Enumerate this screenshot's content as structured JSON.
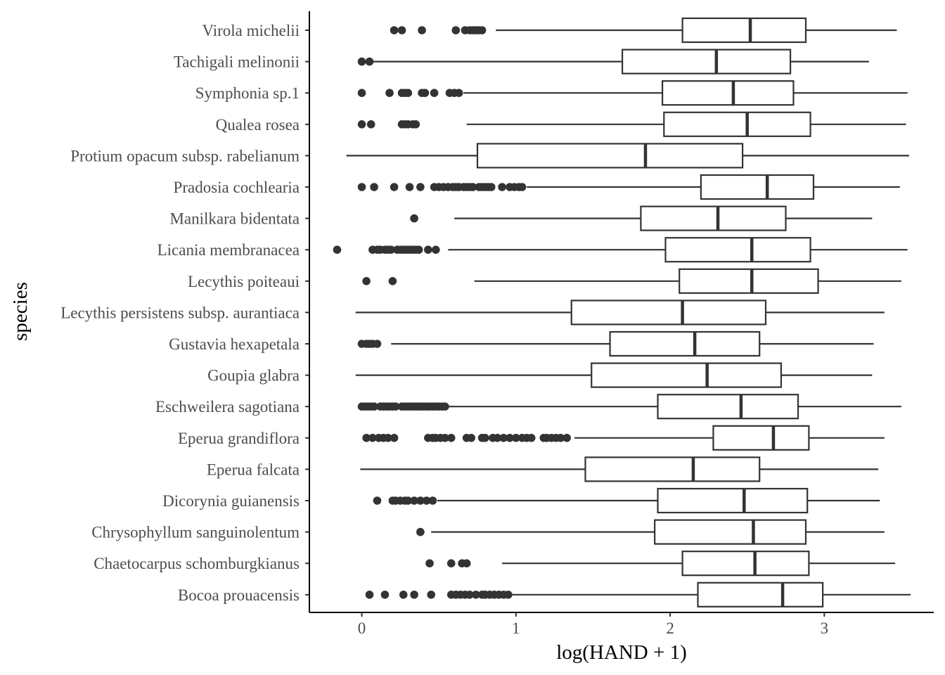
{
  "chart_data": {
    "type": "boxplot",
    "orientation": "horizontal",
    "xlabel": "log(HAND + 1)",
    "ylabel": "species",
    "xlim": [
      -0.34,
      3.71
    ],
    "x_ticks": [
      0,
      1,
      2,
      3
    ],
    "grid": false,
    "legend": "none",
    "colors": {
      "box_stroke": "#333333",
      "outlier": "#333333",
      "axis": "#000000",
      "tick_text": "#4d4d4d"
    },
    "categories": [
      "Virola michelii",
      "Tachigali melinonii",
      "Symphonia sp.1",
      "Qualea rosea",
      "Protium opacum subsp. rabelianum",
      "Pradosia cochlearia",
      "Manilkara bidentata",
      "Licania membranacea",
      "Lecythis poiteaui",
      "Lecythis persistens subsp. aurantiaca",
      "Gustavia hexapetala",
      "Goupia glabra",
      "Eschweilera sagotiana",
      "Eperua grandiflora",
      "Eperua falcata",
      "Dicorynia guianensis",
      "Chrysophyllum sanguinolentum",
      "Chaetocarpus schomburgkianus",
      "Bocoa prouacensis"
    ],
    "boxes": [
      {
        "min": 0.87,
        "q1": 2.08,
        "median": 2.52,
        "q3": 2.88,
        "max": 3.47,
        "outliers": [
          0.21,
          0.26,
          0.39,
          0.61,
          0.67,
          0.7,
          0.72,
          0.74,
          0.76,
          0.78
        ]
      },
      {
        "min": 0.07,
        "q1": 1.69,
        "median": 2.3,
        "q3": 2.78,
        "max": 3.29,
        "outliers": [
          0.0,
          0.05
        ]
      },
      {
        "min": 0.66,
        "q1": 1.95,
        "median": 2.41,
        "q3": 2.8,
        "max": 3.54,
        "outliers": [
          0.0,
          0.18,
          0.26,
          0.28,
          0.3,
          0.39,
          0.41,
          0.47,
          0.57,
          0.6,
          0.63
        ]
      },
      {
        "min": 0.68,
        "q1": 1.96,
        "median": 2.5,
        "q3": 2.91,
        "max": 3.53,
        "outliers": [
          0.0,
          0.06,
          0.26,
          0.28,
          0.3,
          0.33,
          0.35
        ]
      },
      {
        "min": -0.1,
        "q1": 0.75,
        "median": 1.84,
        "q3": 2.47,
        "max": 3.55,
        "outliers": []
      },
      {
        "min": 1.07,
        "q1": 2.2,
        "median": 2.63,
        "q3": 2.93,
        "max": 3.49,
        "outliers": [
          0.0,
          0.08,
          0.21,
          0.31,
          0.38,
          0.47,
          0.5,
          0.53,
          0.56,
          0.59,
          0.61,
          0.63,
          0.66,
          0.68,
          0.7,
          0.72,
          0.76,
          0.78,
          0.8,
          0.82,
          0.84,
          0.91,
          0.96,
          0.99,
          1.02,
          1.04
        ]
      },
      {
        "min": 0.6,
        "q1": 1.81,
        "median": 2.31,
        "q3": 2.75,
        "max": 3.31,
        "outliers": [
          0.34
        ]
      },
      {
        "min": 0.56,
        "q1": 1.97,
        "median": 2.53,
        "q3": 2.91,
        "max": 3.54,
        "outliers": [
          -0.16,
          0.07,
          0.1,
          0.12,
          0.15,
          0.17,
          0.19,
          0.23,
          0.25,
          0.27,
          0.29,
          0.31,
          0.33,
          0.35,
          0.37,
          0.43,
          0.48
        ]
      },
      {
        "min": 0.73,
        "q1": 2.06,
        "median": 2.53,
        "q3": 2.96,
        "max": 3.5,
        "outliers": [
          0.03,
          0.2
        ]
      },
      {
        "min": -0.04,
        "q1": 1.36,
        "median": 2.08,
        "q3": 2.62,
        "max": 3.39,
        "outliers": []
      },
      {
        "min": 0.19,
        "q1": 1.61,
        "median": 2.16,
        "q3": 2.58,
        "max": 3.32,
        "outliers": [
          0.0,
          0.03,
          0.05,
          0.07,
          0.1
        ]
      },
      {
        "min": -0.04,
        "q1": 1.49,
        "median": 2.24,
        "q3": 2.72,
        "max": 3.31,
        "outliers": []
      },
      {
        "min": 0.55,
        "q1": 1.92,
        "median": 2.46,
        "q3": 2.83,
        "max": 3.5,
        "outliers": [
          0.0,
          0.02,
          0.04,
          0.06,
          0.08,
          0.12,
          0.14,
          0.16,
          0.18,
          0.2,
          0.22,
          0.26,
          0.28,
          0.3,
          0.32,
          0.34,
          0.36,
          0.38,
          0.4,
          0.42,
          0.44,
          0.46,
          0.48,
          0.5,
          0.52,
          0.54
        ]
      },
      {
        "min": 1.38,
        "q1": 2.28,
        "median": 2.67,
        "q3": 2.9,
        "max": 3.39,
        "outliers": [
          0.03,
          0.07,
          0.11,
          0.14,
          0.17,
          0.21,
          0.43,
          0.46,
          0.48,
          0.51,
          0.54,
          0.58,
          0.68,
          0.71,
          0.78,
          0.8,
          0.85,
          0.88,
          0.92,
          0.96,
          1.0,
          1.04,
          1.07,
          1.1,
          1.18,
          1.2,
          1.23,
          1.26,
          1.29,
          1.33
        ]
      },
      {
        "min": -0.01,
        "q1": 1.45,
        "median": 2.15,
        "q3": 2.58,
        "max": 3.35,
        "outliers": []
      },
      {
        "min": 0.49,
        "q1": 1.92,
        "median": 2.48,
        "q3": 2.89,
        "max": 3.36,
        "outliers": [
          0.1,
          0.2,
          0.22,
          0.25,
          0.28,
          0.3,
          0.34,
          0.38,
          0.42,
          0.46
        ]
      },
      {
        "min": 0.45,
        "q1": 1.9,
        "median": 2.54,
        "q3": 2.88,
        "max": 3.39,
        "outliers": [
          0.38
        ]
      },
      {
        "min": 0.91,
        "q1": 2.08,
        "median": 2.55,
        "q3": 2.9,
        "max": 3.46,
        "outliers": [
          0.44,
          0.58,
          0.65,
          0.68
        ]
      },
      {
        "min": 0.97,
        "q1": 2.18,
        "median": 2.73,
        "q3": 2.99,
        "max": 3.56,
        "outliers": [
          0.05,
          0.15,
          0.27,
          0.34,
          0.45,
          0.58,
          0.61,
          0.64,
          0.67,
          0.7,
          0.74,
          0.78,
          0.8,
          0.83,
          0.86,
          0.89,
          0.92,
          0.95
        ]
      }
    ]
  }
}
